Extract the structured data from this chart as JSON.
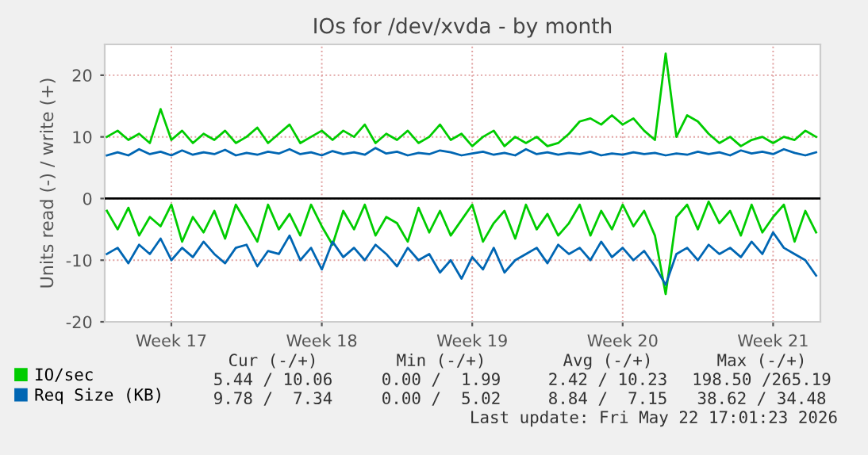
{
  "chart_data": {
    "type": "line",
    "title": "IOs for /dev/xvda - by month",
    "ylabel": "Units read (-) / write (+)",
    "categories": [
      null,
      null,
      null,
      null,
      null,
      null,
      "Week 17",
      null,
      null,
      null,
      null,
      null,
      null,
      null,
      null,
      null,
      null,
      null,
      null,
      null,
      "Week 18",
      null,
      null,
      null,
      null,
      null,
      null,
      null,
      null,
      null,
      null,
      null,
      null,
      null,
      "Week 19",
      null,
      null,
      null,
      null,
      null,
      null,
      null,
      null,
      null,
      null,
      null,
      null,
      null,
      "Week 20",
      null,
      null,
      null,
      null,
      null,
      null,
      null,
      null,
      null,
      null,
      null,
      null,
      null,
      "Week 21",
      null,
      null,
      null,
      null
    ],
    "ylim": [
      -20,
      25
    ],
    "yticks": [
      -20,
      -10,
      0,
      10,
      20
    ],
    "series": [
      {
        "color": "#00cc00",
        "values": [
          -2,
          -5,
          -1.5,
          -6,
          -3,
          -4.5,
          -1,
          -7,
          -3,
          -5.5,
          -2,
          -6.5,
          -1,
          -4,
          -7,
          -1,
          -5,
          -2.5,
          -6,
          -1,
          -4.5,
          -7.5,
          -2,
          -5,
          -1,
          -6,
          -3,
          -4,
          -7,
          -1.5,
          -5.5,
          -2,
          -6,
          -3.5,
          -1,
          -7,
          -4,
          -2,
          -6.5,
          -1,
          -5,
          -2.5,
          -6,
          -4,
          -1,
          -6,
          -2,
          -5,
          -1,
          -4.5,
          -2,
          -6,
          -15.5,
          -3,
          -1,
          -5,
          -0.5,
          -4,
          -2,
          -6,
          -1,
          -5.5,
          -3,
          -1,
          -7,
          -2,
          -5.5
        ]
      },
      {
        "name": "IO/sec",
        "color": "#00cc00",
        "values": [
          10,
          11,
          9.5,
          10.5,
          9,
          14.5,
          9.5,
          11,
          9,
          10.5,
          9.5,
          11,
          9,
          10,
          11.5,
          9,
          10.5,
          12,
          9,
          10,
          11,
          9.5,
          11,
          10,
          12,
          9,
          10.5,
          9.5,
          11,
          9,
          10,
          12,
          9.5,
          10.5,
          8.5,
          10,
          11,
          8.5,
          10,
          9,
          10,
          8.5,
          9,
          10.5,
          12.5,
          13,
          12,
          13.5,
          12,
          13,
          11,
          9.5,
          23.5,
          10,
          13.5,
          12.5,
          10.5,
          9,
          10,
          8.5,
          9.5,
          10,
          9,
          10,
          9.5,
          11,
          10
        ]
      },
      {
        "color": "#0066b3",
        "values": [
          -9,
          -8,
          -10.5,
          -7.5,
          -9,
          -6.5,
          -10,
          -8,
          -9.5,
          -7,
          -9,
          -10.5,
          -8,
          -7.5,
          -11,
          -8.5,
          -9,
          -6,
          -10,
          -8,
          -11.5,
          -7,
          -9.5,
          -8,
          -10,
          -7.5,
          -9,
          -11,
          -8,
          -10,
          -9,
          -12,
          -10,
          -13,
          -9.5,
          -11.5,
          -8,
          -12,
          -10,
          -9,
          -8,
          -10.5,
          -7.5,
          -9,
          -8,
          -10,
          -7,
          -9.5,
          -8,
          -10,
          -8.5,
          -11,
          -14,
          -9,
          -8,
          -10,
          -7.5,
          -9,
          -8,
          -9.5,
          -7,
          -9,
          -5.5,
          -8,
          -9,
          -10,
          -12.5
        ]
      },
      {
        "name": "Req Size (KB)",
        "color": "#0066b3",
        "values": [
          7,
          7.5,
          7,
          8,
          7.2,
          7.6,
          7,
          7.8,
          7.1,
          7.5,
          7.2,
          7.9,
          7,
          7.4,
          7.1,
          7.6,
          7.3,
          8,
          7.2,
          7.5,
          7,
          7.7,
          7.2,
          7.5,
          7.1,
          8.2,
          7.3,
          7.6,
          7,
          7.4,
          7.2,
          7.8,
          7.5,
          7,
          7.3,
          7.6,
          7.1,
          7.4,
          7,
          8,
          7.2,
          7.5,
          7.1,
          7.4,
          7.2,
          7.6,
          7,
          7.3,
          7.1,
          7.5,
          7.2,
          7.4,
          7,
          7.3,
          7.1,
          7.6,
          7.2,
          7.5,
          7,
          7.8,
          7.3,
          7.6,
          7.2,
          8,
          7.4,
          7,
          7.5
        ]
      }
    ],
    "ref_lines": [
      {
        "axis": "y",
        "value": 0,
        "color": "#000000"
      }
    ],
    "annotations": [
      "Cur (-/+)",
      "Min (-/+)",
      "Avg (-/+)",
      "Max (-/+)",
      "5.44 / 10.06",
      "0.00 /  1.99",
      "2.42 / 10.23",
      "198.50 /265.19",
      "9.78 /  7.34",
      "0.00 /  5.02",
      "8.84 /  7.15",
      "38.62 / 34.48",
      "Last update: Fri May 22 17:01:23 2026"
    ],
    "grid": true,
    "legend": "bottom left",
    "line_style": "solid",
    "marker": "none"
  }
}
